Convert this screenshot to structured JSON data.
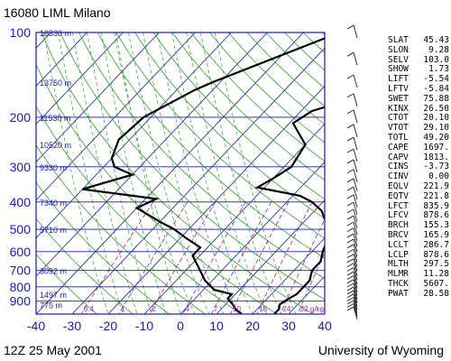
{
  "header": {
    "station": "16080 LIML Milano",
    "date": "12Z 25 May 2001",
    "org": "University of Wyoming"
  },
  "chart_data": {
    "type": "skew-t",
    "x_axis": {
      "ticks": [
        -40,
        -30,
        -20,
        -10,
        0,
        10,
        20,
        30,
        40
      ],
      "range": [
        -40,
        40
      ]
    },
    "y_axis": {
      "ticks": [
        100,
        200,
        300,
        400,
        500,
        600,
        700,
        800,
        900
      ],
      "scale": "log",
      "range": [
        100,
        1000
      ]
    },
    "height_labels": [
      {
        "p": 100,
        "label": "16330 m"
      },
      {
        "p": 150,
        "label": "13750 m"
      },
      {
        "p": 200,
        "label": "11530 m"
      },
      {
        "p": 250,
        "label": "10520 m"
      },
      {
        "p": 300,
        "label": "9330 m"
      },
      {
        "p": 400,
        "label": "7340 m"
      },
      {
        "p": 500,
        "label": "5710 m"
      },
      {
        "p": 700,
        "label": "3092 m"
      },
      {
        "p": 850,
        "label": "1497 m"
      },
      {
        "p": 925,
        "label": "775 m"
      }
    ],
    "mixing_ratio_labels": [
      "0.4",
      "1",
      "2",
      "4",
      "7",
      "10",
      "16",
      "24",
      "32",
      "g/kg"
    ],
    "temperature": [
      {
        "p": 100,
        "t": 4
      },
      {
        "p": 130,
        "t": -4
      },
      {
        "p": 150,
        "t": -10
      },
      {
        "p": 170,
        "t": -8
      },
      {
        "p": 190,
        "t": -17
      },
      {
        "p": 210,
        "t": -19
      },
      {
        "p": 250,
        "t": -10
      },
      {
        "p": 300,
        "t": -8
      },
      {
        "p": 330,
        "t": -10
      },
      {
        "p": 355,
        "t": -12
      },
      {
        "p": 380,
        "t": 2
      },
      {
        "p": 400,
        "t": 7
      },
      {
        "p": 430,
        "t": 12
      },
      {
        "p": 460,
        "t": 15
      },
      {
        "p": 500,
        "t": 19
      },
      {
        "p": 540,
        "t": 21
      },
      {
        "p": 600,
        "t": 23
      },
      {
        "p": 650,
        "t": 25
      },
      {
        "p": 700,
        "t": 25
      },
      {
        "p": 760,
        "t": 27
      },
      {
        "p": 820,
        "t": 27
      },
      {
        "p": 850,
        "t": 27
      },
      {
        "p": 880,
        "t": 26
      },
      {
        "p": 925,
        "t": 25
      },
      {
        "p": 960,
        "t": 26
      },
      {
        "p": 1000,
        "t": 26
      }
    ],
    "dewpoint": [
      {
        "p": 100,
        "t": -30
      },
      {
        "p": 150,
        "t": -52
      },
      {
        "p": 160,
        "t": -55
      },
      {
        "p": 200,
        "t": -62
      },
      {
        "p": 240,
        "t": -63
      },
      {
        "p": 280,
        "t": -60
      },
      {
        "p": 300,
        "t": -57
      },
      {
        "p": 320,
        "t": -50
      },
      {
        "p": 360,
        "t": -60
      },
      {
        "p": 390,
        "t": -37
      },
      {
        "p": 420,
        "t": -40
      },
      {
        "p": 470,
        "t": -30
      },
      {
        "p": 500,
        "t": -24
      },
      {
        "p": 540,
        "t": -18
      },
      {
        "p": 580,
        "t": -12
      },
      {
        "p": 620,
        "t": -12
      },
      {
        "p": 700,
        "t": -6
      },
      {
        "p": 760,
        "t": -2
      },
      {
        "p": 820,
        "t": 3
      },
      {
        "p": 850,
        "t": 9
      },
      {
        "p": 880,
        "t": 9
      },
      {
        "p": 925,
        "t": 12
      },
      {
        "p": 960,
        "t": 14
      },
      {
        "p": 1000,
        "t": 17
      }
    ]
  },
  "indices": [
    {
      "name": "SLAT",
      "value": "45.43"
    },
    {
      "name": "SLON",
      "value": "9.28"
    },
    {
      "name": "SELV",
      "value": "103.0"
    },
    {
      "name": "SHOW",
      "value": "1.73"
    },
    {
      "name": "LIFT",
      "value": "-5.54"
    },
    {
      "name": "LFTV",
      "value": "-5.84"
    },
    {
      "name": "SWET",
      "value": "75.88"
    },
    {
      "name": "KINX",
      "value": "26.50"
    },
    {
      "name": "CTOT",
      "value": "20.10"
    },
    {
      "name": "VTOT",
      "value": "29.10"
    },
    {
      "name": "TOTL",
      "value": "49.20"
    },
    {
      "name": "CAPE",
      "value": "1697."
    },
    {
      "name": "CAPV",
      "value": "1813."
    },
    {
      "name": "CINS",
      "value": "-3.73"
    },
    {
      "name": "CINV",
      "value": "0.00"
    },
    {
      "name": "EQLV",
      "value": "221.9"
    },
    {
      "name": "EQTV",
      "value": "221.8"
    },
    {
      "name": "LFCT",
      "value": "835.9"
    },
    {
      "name": "LFCV",
      "value": "878.6"
    },
    {
      "name": "BRCH",
      "value": "155.3"
    },
    {
      "name": "BRCV",
      "value": "165.9"
    },
    {
      "name": "LCLT",
      "value": "286.7"
    },
    {
      "name": "LCLP",
      "value": "878.6"
    },
    {
      "name": "MLTH",
      "value": "297.5"
    },
    {
      "name": "MLMR",
      "value": "11.28"
    },
    {
      "name": "THCK",
      "value": "5607."
    },
    {
      "name": "PWAT",
      "value": "28.58"
    }
  ],
  "colors": {
    "isobar": "#1a1aa8",
    "isotherm": "#1a1aa8",
    "dry_adiabat": "#2f9f2f",
    "mixing_ratio": "#a020a0",
    "profile": "#000000"
  }
}
